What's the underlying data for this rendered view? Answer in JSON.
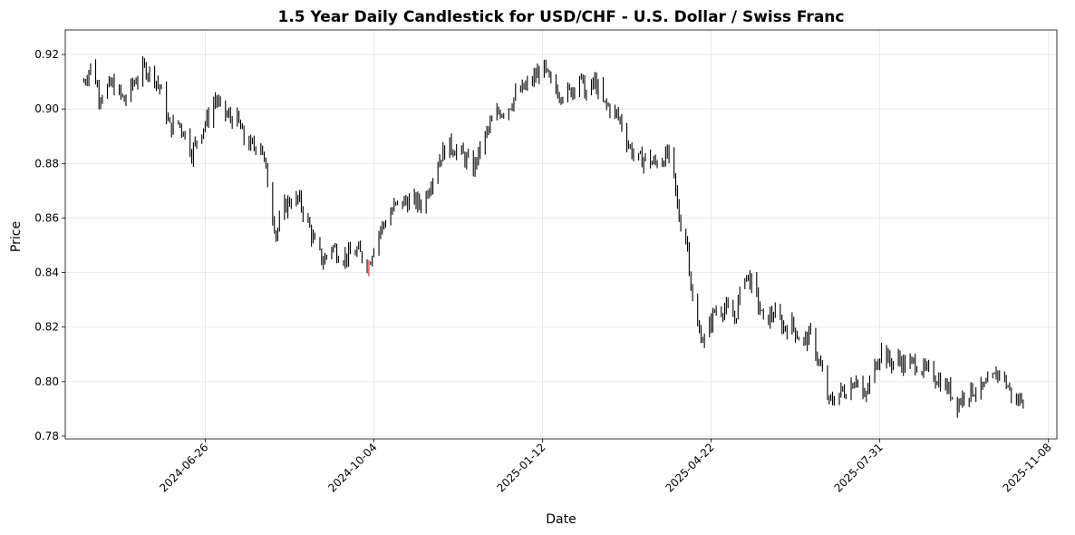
{
  "chart_data": {
    "type": "candlestick",
    "title": "1.5 Year Daily Candlestick for USD/CHF - U.S. Dollar / Swiss Franc",
    "xlabel": "Date",
    "ylabel": "Price",
    "xlim": [
      "2024-04-04",
      "2025-11-13"
    ],
    "ylim": [
      0.779,
      0.929
    ],
    "grid": true,
    "x_ticks": [
      "2024-06-26",
      "2024-10-04",
      "2025-01-12",
      "2025-04-22",
      "2025-07-31",
      "2025-11-08"
    ],
    "y_ticks": [
      "0.78",
      "0.80",
      "0.82",
      "0.84",
      "0.86",
      "0.88",
      "0.90",
      "0.92"
    ],
    "colors": {
      "up": "#000000",
      "down": "#000000",
      "highlight": "#d62728"
    },
    "highlight_candle": "2024-10-01",
    "anchors": [
      [
        "2024-04-15",
        0.91
      ],
      [
        "2024-04-20",
        0.917
      ],
      [
        "2024-04-24",
        0.905
      ],
      [
        "2024-05-02",
        0.909
      ],
      [
        "2024-05-09",
        0.903
      ],
      [
        "2024-05-15",
        0.91
      ],
      [
        "2024-05-21",
        0.915
      ],
      [
        "2024-05-27",
        0.912
      ],
      [
        "2024-05-31",
        0.906
      ],
      [
        "2024-06-05",
        0.893
      ],
      [
        "2024-06-10",
        0.895
      ],
      [
        "2024-06-14",
        0.891
      ],
      [
        "2024-06-18",
        0.884
      ],
      [
        "2024-06-24",
        0.893
      ],
      [
        "2024-06-28",
        0.897
      ],
      [
        "2024-07-02",
        0.904
      ],
      [
        "2024-07-05",
        0.9
      ],
      [
        "2024-07-10",
        0.897
      ],
      [
        "2024-07-15",
        0.896
      ],
      [
        "2024-07-19",
        0.889
      ],
      [
        "2024-07-24",
        0.886
      ],
      [
        "2024-07-29",
        0.888
      ],
      [
        "2024-08-02",
        0.873
      ],
      [
        "2024-08-07",
        0.854
      ],
      [
        "2024-08-12",
        0.864
      ],
      [
        "2024-08-16",
        0.867
      ],
      [
        "2024-08-21",
        0.866
      ],
      [
        "2024-08-26",
        0.858
      ],
      [
        "2024-08-30",
        0.85
      ],
      [
        "2024-09-04",
        0.844
      ],
      [
        "2024-09-09",
        0.85
      ],
      [
        "2024-09-14",
        0.846
      ],
      [
        "2024-09-19",
        0.846
      ],
      [
        "2024-09-24",
        0.848
      ],
      [
        "2024-09-28",
        0.845
      ],
      [
        "2024-10-01",
        0.843
      ],
      [
        "2024-10-05",
        0.853
      ],
      [
        "2024-10-10",
        0.858
      ],
      [
        "2024-10-16",
        0.864
      ],
      [
        "2024-10-22",
        0.866
      ],
      [
        "2024-10-28",
        0.866
      ],
      [
        "2024-11-02",
        0.865
      ],
      [
        "2024-11-07",
        0.874
      ],
      [
        "2024-11-12",
        0.882
      ],
      [
        "2024-11-17",
        0.887
      ],
      [
        "2024-11-22",
        0.885
      ],
      [
        "2024-11-27",
        0.882
      ],
      [
        "2024-12-02",
        0.878
      ],
      [
        "2024-12-07",
        0.887
      ],
      [
        "2024-12-12",
        0.894
      ],
      [
        "2024-12-17",
        0.899
      ],
      [
        "2024-12-22",
        0.9
      ],
      [
        "2024-12-27",
        0.905
      ],
      [
        "2025-01-02",
        0.908
      ],
      [
        "2025-01-08",
        0.912
      ],
      [
        "2025-01-12",
        0.916
      ],
      [
        "2025-01-16",
        0.91
      ],
      [
        "2025-01-22",
        0.906
      ],
      [
        "2025-01-28",
        0.906
      ],
      [
        "2025-02-03",
        0.912
      ],
      [
        "2025-02-07",
        0.905
      ],
      [
        "2025-02-12",
        0.91
      ],
      [
        "2025-02-17",
        0.902
      ],
      [
        "2025-02-22",
        0.9
      ],
      [
        "2025-02-27",
        0.896
      ],
      [
        "2025-03-04",
        0.887
      ],
      [
        "2025-03-09",
        0.881
      ],
      [
        "2025-03-14",
        0.882
      ],
      [
        "2025-03-19",
        0.88
      ],
      [
        "2025-03-24",
        0.882
      ],
      [
        "2025-03-29",
        0.883
      ],
      [
        "2025-04-03",
        0.86
      ],
      [
        "2025-04-08",
        0.85
      ],
      [
        "2025-04-12",
        0.822
      ],
      [
        "2025-04-18",
        0.815
      ],
      [
        "2025-04-24",
        0.826
      ],
      [
        "2025-04-30",
        0.827
      ],
      [
        "2025-05-06",
        0.823
      ],
      [
        "2025-05-12",
        0.84
      ],
      [
        "2025-05-17",
        0.835
      ],
      [
        "2025-05-23",
        0.822
      ],
      [
        "2025-05-29",
        0.825
      ],
      [
        "2025-06-04",
        0.82
      ],
      [
        "2025-06-09",
        0.821
      ],
      [
        "2025-06-15",
        0.814
      ],
      [
        "2025-06-20",
        0.817
      ],
      [
        "2025-06-26",
        0.805
      ],
      [
        "2025-07-01",
        0.792
      ],
      [
        "2025-07-07",
        0.796
      ],
      [
        "2025-07-12",
        0.797
      ],
      [
        "2025-07-17",
        0.802
      ],
      [
        "2025-07-22",
        0.793
      ],
      [
        "2025-07-27",
        0.804
      ],
      [
        "2025-08-01",
        0.812
      ],
      [
        "2025-08-06",
        0.807
      ],
      [
        "2025-08-11",
        0.808
      ],
      [
        "2025-08-16",
        0.806
      ],
      [
        "2025-08-21",
        0.807
      ],
      [
        "2025-08-26",
        0.804
      ],
      [
        "2025-08-31",
        0.803
      ],
      [
        "2025-09-05",
        0.8
      ],
      [
        "2025-09-10",
        0.797
      ],
      [
        "2025-09-15",
        0.792
      ],
      [
        "2025-09-20",
        0.796
      ],
      [
        "2025-09-25",
        0.797
      ],
      [
        "2025-09-30",
        0.797
      ],
      [
        "2025-10-05",
        0.8
      ],
      [
        "2025-10-10",
        0.804
      ],
      [
        "2025-10-15",
        0.798
      ],
      [
        "2025-10-20",
        0.792
      ],
      [
        "2025-10-25",
        0.796
      ]
    ]
  }
}
